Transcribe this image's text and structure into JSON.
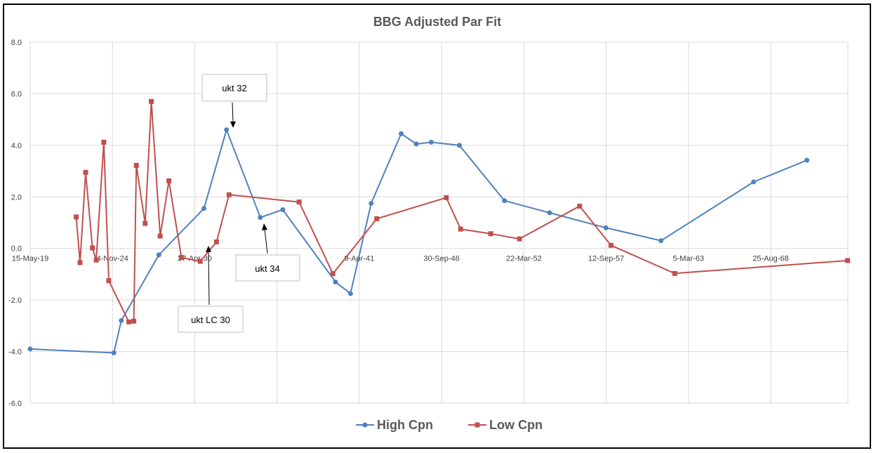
{
  "chart_data": {
    "type": "line",
    "title": "BBG Adjusted Par Fit",
    "xlabel": "",
    "ylabel": "",
    "x_axis": {
      "kind": "date",
      "range": [
        "2019-05-15",
        "2073-10-15"
      ],
      "tick_labels": [
        "15-May-19",
        "4-Nov-24",
        "27-Apr-30",
        "9-Apr-41",
        "30-Sep-46",
        "22-Mar-52",
        "12-Sep-57",
        "5-Mar-63",
        "25-Aug-68"
      ]
    },
    "y_axis": {
      "range": [
        -6.0,
        8.0
      ],
      "ticks": [
        "8.0",
        "6.0",
        "4.0",
        "2.0",
        "0.0",
        "-2.0",
        "-4.0",
        "-6.0"
      ]
    },
    "grid": true,
    "legend_position": "bottom",
    "series": [
      {
        "name": "High Cpn",
        "color": "#4F81BD",
        "marker": "circle",
        "points": [
          [
            "2019-05-15",
            -3.9
          ],
          [
            "2024-12-07",
            -4.05
          ],
          [
            "2025-06-07",
            -2.8
          ],
          [
            "2027-12-07",
            -0.25
          ],
          [
            "2030-12-07",
            1.55
          ],
          [
            "2032-06-07",
            4.6
          ],
          [
            "2034-09-07",
            1.2
          ],
          [
            "2036-03-07",
            1.5
          ],
          [
            "2039-09-07",
            -1.3
          ],
          [
            "2040-09-07",
            -1.75
          ],
          [
            "2042-01-22",
            1.75
          ],
          [
            "2044-01-22",
            4.45
          ],
          [
            "2045-01-22",
            4.05
          ],
          [
            "2046-01-22",
            4.12
          ],
          [
            "2047-12-07",
            4.0
          ],
          [
            "2050-12-07",
            1.85
          ],
          [
            "2053-12-07",
            1.38
          ],
          [
            "2057-09-07",
            0.8
          ],
          [
            "2061-05-07",
            0.3
          ],
          [
            "2067-07-07",
            2.58
          ],
          [
            "2071-01-22",
            3.42
          ]
        ]
      },
      {
        "name": "Low Cpn",
        "color": "#C0504D",
        "marker": "square",
        "points": [
          [
            "2022-06-07",
            1.22
          ],
          [
            "2022-09-07",
            -0.55
          ],
          [
            "2023-01-22",
            2.95
          ],
          [
            "2023-07-07",
            0.02
          ],
          [
            "2023-10-07",
            -0.45
          ],
          [
            "2024-04-07",
            4.12
          ],
          [
            "2024-08-07",
            -1.25
          ],
          [
            "2025-12-07",
            -2.85
          ],
          [
            "2026-04-07",
            -2.82
          ],
          [
            "2026-06-07",
            3.22
          ],
          [
            "2027-01-07",
            0.97
          ],
          [
            "2027-06-07",
            5.7
          ],
          [
            "2028-01-07",
            0.48
          ],
          [
            "2028-08-07",
            2.62
          ],
          [
            "2029-06-07",
            -0.35
          ],
          [
            "2030-09-07",
            -0.5
          ],
          [
            "2031-10-07",
            0.25
          ],
          [
            "2032-08-07",
            2.08
          ],
          [
            "2037-04-07",
            1.8
          ],
          [
            "2039-07-07",
            -0.98
          ],
          [
            "2042-06-07",
            1.15
          ],
          [
            "2047-01-22",
            1.97
          ],
          [
            "2048-01-07",
            0.75
          ],
          [
            "2050-01-07",
            0.57
          ],
          [
            "2051-12-07",
            0.37
          ],
          [
            "2055-12-07",
            1.64
          ],
          [
            "2058-01-07",
            0.12
          ],
          [
            "2062-04-07",
            -0.97
          ],
          [
            "2073-10-07",
            -0.47
          ]
        ]
      }
    ],
    "annotations": [
      {
        "id": "ukt-32",
        "text": "ukt 32"
      },
      {
        "id": "ukt-34",
        "text": "ukt 34"
      },
      {
        "id": "ukt-lc-30",
        "text": "ukt LC 30"
      }
    ]
  }
}
